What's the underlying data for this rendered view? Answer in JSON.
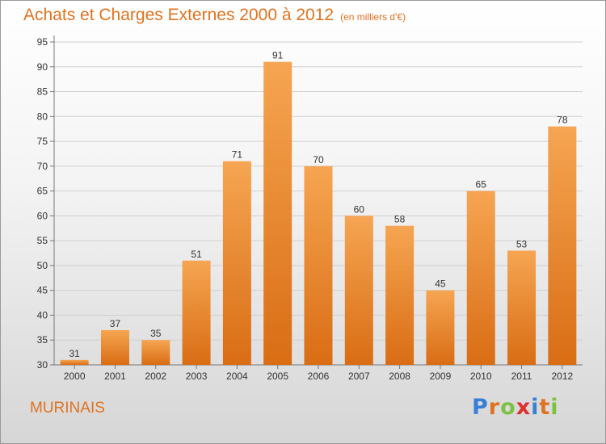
{
  "title": "Achats et Charges Externes 2000 à 2012",
  "subtitle": "(en milliers d'€)",
  "place_name": "MURINAIS",
  "brand": {
    "letters": [
      "P",
      "r",
      "o",
      "x",
      "i",
      "t",
      "i"
    ],
    "colors": [
      "#3a7fd6",
      "#e0731f",
      "#7cc142",
      "#e02f2f",
      "#3a7fd6",
      "#e0731f",
      "#7cc142"
    ]
  },
  "colors": {
    "bar_light": "#f6a552",
    "bar_dark": "#d96d14",
    "accent": "#e0731f"
  },
  "chart_data": {
    "type": "bar",
    "categories": [
      "2000",
      "2001",
      "2002",
      "2003",
      "2004",
      "2005",
      "2006",
      "2007",
      "2008",
      "2009",
      "2010",
      "2011",
      "2012"
    ],
    "values": [
      31,
      37,
      35,
      51,
      71,
      91,
      70,
      60,
      58,
      45,
      65,
      53,
      78
    ],
    "title": "Achats et Charges Externes 2000 à 2012",
    "ylim": [
      30,
      95
    ],
    "yticks": [
      30,
      35,
      40,
      45,
      50,
      55,
      60,
      65,
      70,
      75,
      80,
      85,
      90,
      95
    ],
    "grid": true,
    "data_labels": true
  }
}
